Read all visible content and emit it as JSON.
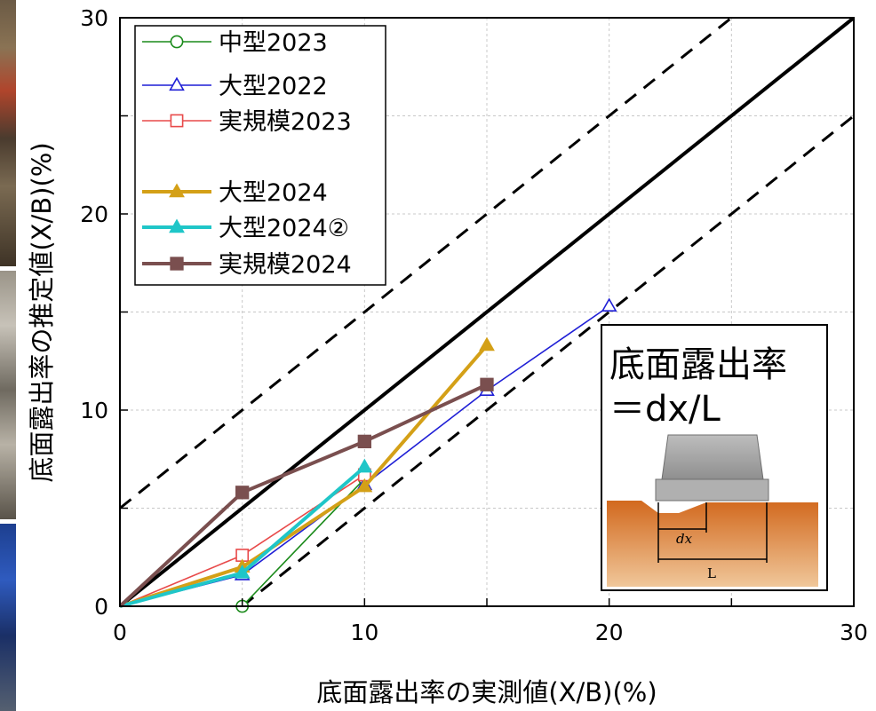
{
  "chart_data": {
    "type": "line",
    "xlabel": "底面露出率の実測値(X/B)(%)",
    "ylabel": "底面露出率の推定値(X/B)(%)",
    "xlim": [
      0,
      30
    ],
    "ylim": [
      0,
      30
    ],
    "x_ticks": [
      "0",
      "10",
      "20",
      "30"
    ],
    "y_ticks": [
      "0",
      "10",
      "20",
      "30"
    ],
    "grid": true,
    "legend_position": "top-left",
    "reference_lines": [
      {
        "style": "solid",
        "color": "#000000",
        "points": [
          [
            0,
            0
          ],
          [
            30,
            30
          ]
        ]
      },
      {
        "style": "dashed",
        "color": "#000000",
        "points": [
          [
            0,
            5
          ],
          [
            25,
            30
          ]
        ]
      },
      {
        "style": "dashed",
        "color": "#000000",
        "points": [
          [
            5,
            0
          ],
          [
            30,
            25
          ]
        ]
      }
    ],
    "series": [
      {
        "name": "中型2023",
        "color": "#1a8a1a",
        "marker": "circle-open",
        "width": 1.6,
        "x": [
          5,
          10
        ],
        "y": [
          0,
          6.5
        ]
      },
      {
        "name": "大型2022",
        "color": "#1f1fd6",
        "marker": "triangle-open",
        "width": 1.6,
        "x": [
          0,
          5,
          10,
          15,
          20
        ],
        "y": [
          0,
          1.6,
          6.2,
          11.0,
          15.3
        ]
      },
      {
        "name": "実規模2023",
        "color": "#e84a4a",
        "marker": "square-open",
        "width": 1.6,
        "x": [
          0,
          5,
          10
        ],
        "y": [
          0,
          2.6,
          6.7
        ]
      },
      {
        "name": "大型2024",
        "color": "#d4a017",
        "marker": "triangle-filled",
        "width": 4,
        "x": [
          0,
          5,
          10,
          15
        ],
        "y": [
          0,
          2.0,
          6.1,
          13.3
        ]
      },
      {
        "name": "大型2024②",
        "color": "#1fc6c8",
        "marker": "triangle-filled",
        "width": 4,
        "x": [
          0,
          5,
          10
        ],
        "y": [
          0,
          1.7,
          7.1
        ]
      },
      {
        "name": "実規模2024",
        "color": "#7a4f4f",
        "marker": "square-filled",
        "width": 4,
        "x": [
          0,
          5,
          10,
          15
        ],
        "y": [
          0,
          5.8,
          8.4,
          11.3
        ]
      }
    ]
  },
  "inset": {
    "title_line1": "底面露出率",
    "title_line2": "＝dx/L",
    "label_dx": "dx",
    "label_L": "L"
  }
}
